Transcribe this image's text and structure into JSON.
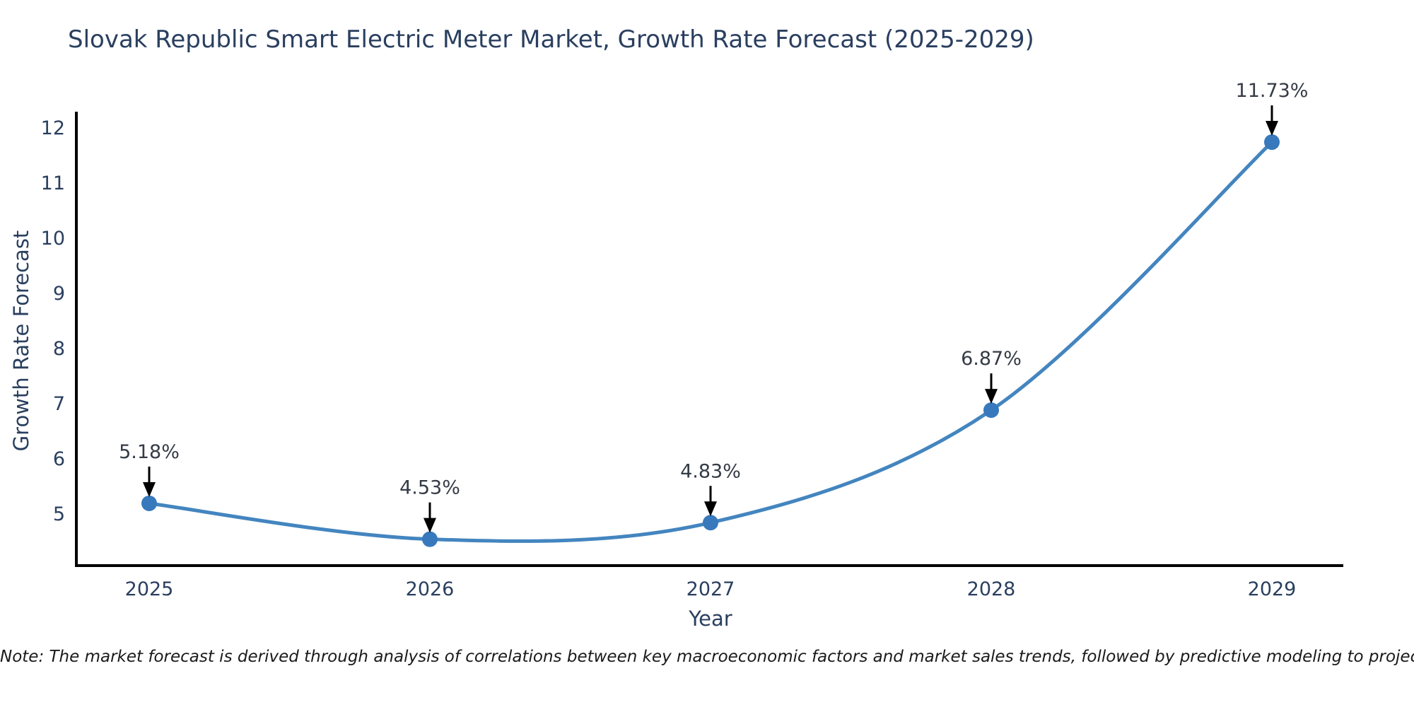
{
  "figure": {
    "note": "Note: The market forecast is derived through analysis of correlations between key macroeconomic factors and market sales trends, followed by predictive modeling to project future sales"
  },
  "chart_data": {
    "type": "line",
    "title": "Slovak Republic Smart Electric Meter Market, Growth Rate Forecast (2025-2029)",
    "xlabel": "Year",
    "ylabel": "Growth Rate Forecast",
    "x": [
      2025,
      2026,
      2027,
      2028,
      2029
    ],
    "values": [
      5.18,
      4.53,
      4.83,
      6.87,
      11.73
    ],
    "point_labels": [
      "5.18%",
      "4.53%",
      "4.83%",
      "6.87%",
      "11.73%"
    ],
    "yticks": [
      5,
      6,
      7,
      8,
      9,
      10,
      11,
      12
    ],
    "ylim": [
      4.05,
      12.28
    ],
    "line_shape": "spline",
    "grid": false,
    "legend_position": "none",
    "annotations_have_arrows": true,
    "colors": {
      "line": "#4385bf",
      "marker": "#3779bc",
      "arrow": "#000000",
      "spine": "#000000",
      "title": "#2a3f5f",
      "tick_label": "#2a3f5f",
      "annotation": "#353b46",
      "note": "#1a1a1a",
      "background": "#ffffff"
    }
  }
}
